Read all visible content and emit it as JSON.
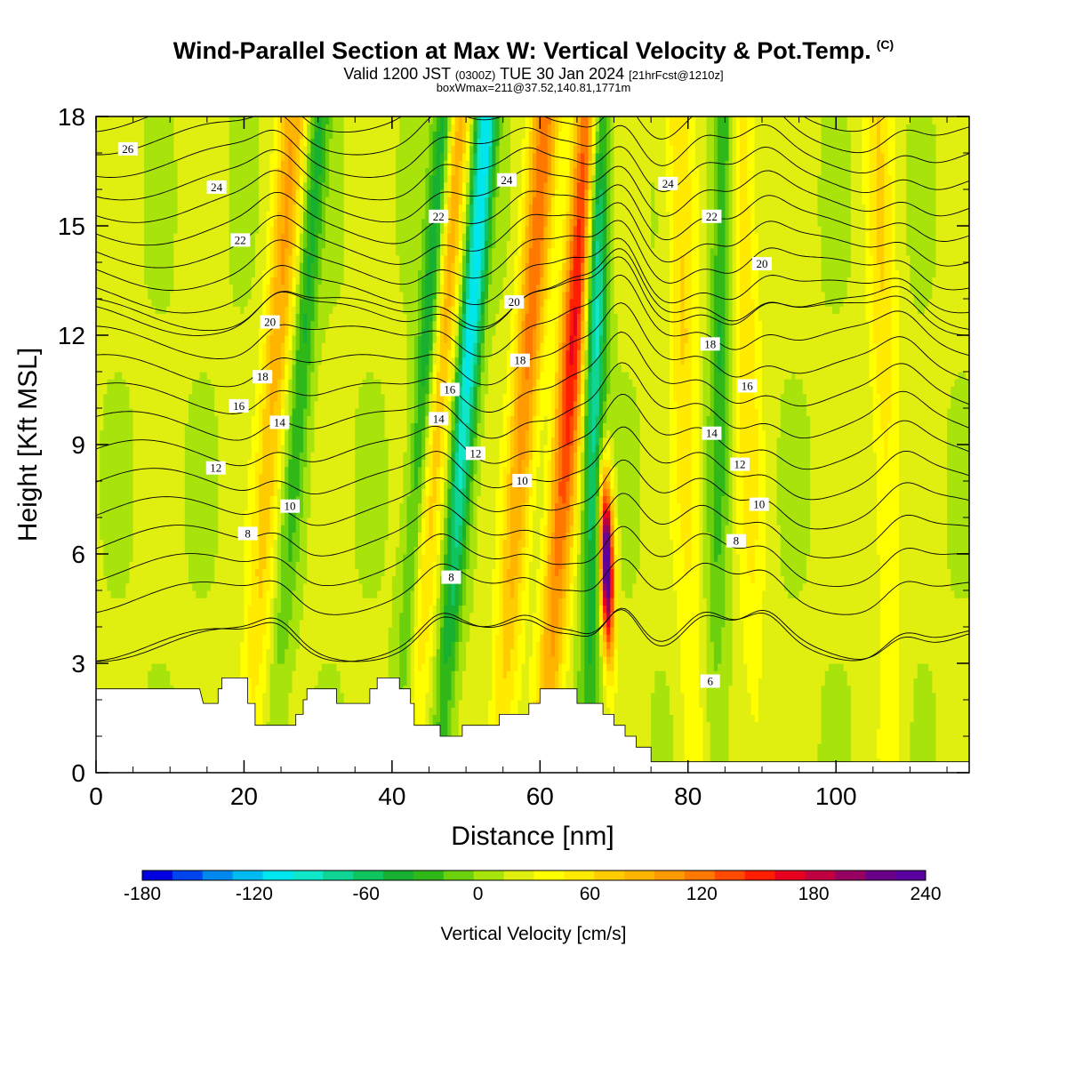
{
  "title": {
    "main": "Wind-Parallel Section at Max W: Vertical Velocity & Pot.Temp.",
    "copyright": "(C)",
    "valid_prefix": "Valid 1200 JST",
    "valid_z": "(0300Z)",
    "valid_date": "TUE 30 Jan 2024",
    "forecast": "[21hrFcst@1210z]",
    "box_info": "boxWmax=211@37.52,140.81,1771m"
  },
  "chart_data": {
    "type": "heatmap",
    "xlabel": "Distance [nm]",
    "ylabel": "Height [Kft MSL]",
    "xlim": [
      0,
      118
    ],
    "ylim": [
      0,
      18
    ],
    "x_ticks": [
      "0",
      "20",
      "40",
      "60",
      "80",
      "100"
    ],
    "y_ticks": [
      "0",
      "3",
      "6",
      "9",
      "12",
      "15",
      "18"
    ],
    "colorbar": {
      "label": "Vertical Velocity [cm/s]",
      "tick_labels": [
        "-180",
        "-120",
        "-60",
        "0",
        "60",
        "120",
        "180",
        "240"
      ],
      "levels": [
        -180,
        -165,
        -150,
        -135,
        -120,
        -105,
        -90,
        -75,
        -60,
        -45,
        -30,
        -15,
        0,
        15,
        30,
        45,
        60,
        75,
        90,
        105,
        120,
        135,
        150,
        165,
        180,
        195,
        210,
        225,
        240
      ],
      "colors": [
        "#0000e0",
        "#0044f0",
        "#0088ee",
        "#00bbf0",
        "#00e6ee",
        "#10e6c8",
        "#10d494",
        "#10c460",
        "#18b030",
        "#30b818",
        "#6cd00c",
        "#a8e40c",
        "#e0ee10",
        "#ffff00",
        "#ffea00",
        "#ffcc00",
        "#ffb400",
        "#ff9a00",
        "#ff7800",
        "#ff4a00",
        "#ff1e00",
        "#e80020",
        "#c00040",
        "#960060",
        "#6a0088",
        "#5a00a0"
      ]
    },
    "updraft_columns": [
      {
        "x": 22.5,
        "peak_w": 70
      },
      {
        "x": 44.5,
        "peak_w": 80
      },
      {
        "x": 56.5,
        "peak_w": 95
      },
      {
        "x": 62.5,
        "peak_w": 140
      },
      {
        "x": 69.0,
        "peak_w": 230
      },
      {
        "x": 80.0,
        "peak_w": 45
      },
      {
        "x": 88.5,
        "peak_w": 40
      },
      {
        "x": 107.0,
        "peak_w": 40
      }
    ],
    "downdraft_columns": [
      {
        "x": 48.5,
        "peak_w": -120
      },
      {
        "x": 67.0,
        "peak_w": -110
      },
      {
        "x": 43.0,
        "peak_w": -90
      },
      {
        "x": 26.0,
        "peak_w": -50
      },
      {
        "x": 84.0,
        "peak_w": -50
      }
    ],
    "theta_contours": {
      "field": "Pot.Temp.",
      "labeled_values": [
        "6",
        "8",
        "10",
        "12",
        "14",
        "16",
        "18",
        "20",
        "22",
        "24",
        "26"
      ],
      "labels": [
        {
          "text": "26",
          "x": 4.3,
          "y": 17.1
        },
        {
          "text": "24",
          "x": 16.3,
          "y": 16.05
        },
        {
          "text": "24",
          "x": 55.5,
          "y": 16.25
        },
        {
          "text": "24",
          "x": 77.3,
          "y": 16.15
        },
        {
          "text": "22",
          "x": 19.5,
          "y": 14.6
        },
        {
          "text": "22",
          "x": 46.3,
          "y": 15.25
        },
        {
          "text": "22",
          "x": 83.2,
          "y": 15.25
        },
        {
          "text": "20",
          "x": 23.5,
          "y": 12.35
        },
        {
          "text": "20",
          "x": 56.5,
          "y": 12.9
        },
        {
          "text": "20",
          "x": 90.0,
          "y": 13.95
        },
        {
          "text": "18",
          "x": 22.5,
          "y": 10.85
        },
        {
          "text": "18",
          "x": 57.3,
          "y": 11.3
        },
        {
          "text": "18",
          "x": 83.0,
          "y": 11.75
        },
        {
          "text": "16",
          "x": 19.3,
          "y": 10.05
        },
        {
          "text": "16",
          "x": 47.8,
          "y": 10.5
        },
        {
          "text": "16",
          "x": 88.0,
          "y": 10.6
        },
        {
          "text": "14",
          "x": 24.8,
          "y": 9.6
        },
        {
          "text": "14",
          "x": 46.3,
          "y": 9.7
        },
        {
          "text": "14",
          "x": 83.2,
          "y": 9.3
        },
        {
          "text": "12",
          "x": 16.2,
          "y": 8.35
        },
        {
          "text": "12",
          "x": 51.3,
          "y": 8.75
        },
        {
          "text": "12",
          "x": 87.0,
          "y": 8.45
        },
        {
          "text": "10",
          "x": 26.2,
          "y": 7.3
        },
        {
          "text": "10",
          "x": 57.6,
          "y": 8.0
        },
        {
          "text": "10",
          "x": 89.6,
          "y": 7.35
        },
        {
          "text": "8",
          "x": 20.5,
          "y": 6.55
        },
        {
          "text": "8",
          "x": 48.0,
          "y": 5.35
        },
        {
          "text": "8",
          "x": 86.5,
          "y": 6.35
        },
        {
          "text": "6",
          "x": 83.0,
          "y": 2.5
        }
      ]
    },
    "terrain_top_kft": [
      [
        0,
        2.3
      ],
      [
        14,
        2.3
      ],
      [
        14.5,
        1.9
      ],
      [
        16.5,
        1.9
      ],
      [
        16.5,
        2.3
      ],
      [
        17,
        2.3
      ],
      [
        17,
        2.6
      ],
      [
        20.5,
        2.6
      ],
      [
        20.5,
        1.9
      ],
      [
        21.5,
        1.9
      ],
      [
        21.5,
        1.3
      ],
      [
        27,
        1.3
      ],
      [
        27,
        1.6
      ],
      [
        28,
        1.6
      ],
      [
        28,
        2.0
      ],
      [
        28.5,
        2.0
      ],
      [
        28.5,
        2.3
      ],
      [
        32.5,
        2.3
      ],
      [
        32.5,
        1.9
      ],
      [
        37,
        1.9
      ],
      [
        37,
        2.3
      ],
      [
        38,
        2.3
      ],
      [
        38,
        2.6
      ],
      [
        41,
        2.6
      ],
      [
        41,
        2.3
      ],
      [
        42.5,
        2.3
      ],
      [
        42.5,
        1.9
      ],
      [
        43,
        1.9
      ],
      [
        43,
        1.3
      ],
      [
        46.5,
        1.3
      ],
      [
        46.5,
        1.0
      ],
      [
        49.5,
        1.0
      ],
      [
        49.5,
        1.3
      ],
      [
        54.5,
        1.3
      ],
      [
        54.5,
        1.6
      ],
      [
        58.5,
        1.6
      ],
      [
        58.5,
        1.9
      ],
      [
        60,
        1.9
      ],
      [
        60,
        2.3
      ],
      [
        65,
        2.3
      ],
      [
        65,
        1.9
      ],
      [
        68.5,
        1.9
      ],
      [
        68.5,
        1.6
      ],
      [
        70,
        1.6
      ],
      [
        70,
        1.3
      ],
      [
        71.5,
        1.3
      ],
      [
        71.5,
        1.0
      ],
      [
        73,
        1.0
      ],
      [
        73,
        0.7
      ],
      [
        75,
        0.7
      ],
      [
        75,
        0.3
      ],
      [
        118,
        0.3
      ]
    ]
  }
}
